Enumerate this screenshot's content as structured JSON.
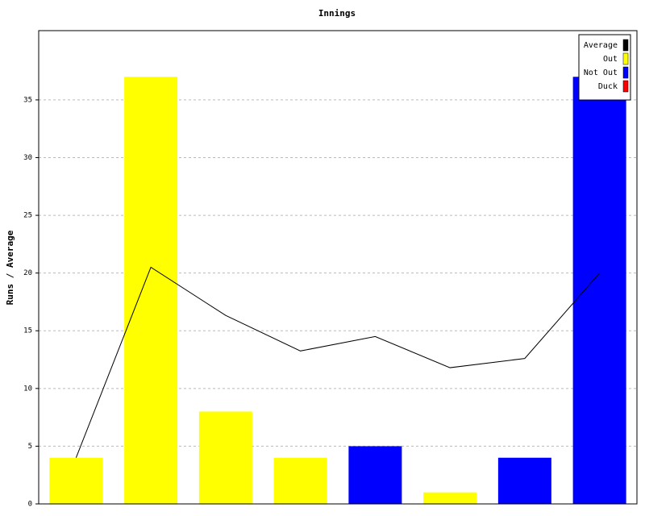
{
  "chart_data": {
    "type": "bar",
    "title": "Innings",
    "y_label": "Runs / Average",
    "categories": [
      null,
      null,
      null,
      null,
      null,
      null,
      null,
      null
    ],
    "series": [
      {
        "name": "Average",
        "type": "line",
        "color": "#000000",
        "values": [
          4,
          20.5,
          16.33,
          13.25,
          14.5,
          11.8,
          12.6,
          20
        ]
      },
      {
        "name": "Out",
        "type": "bar",
        "color": "#ffff00",
        "values": [
          4,
          37,
          8,
          4,
          null,
          1,
          null,
          null
        ]
      },
      {
        "name": "Not Out",
        "type": "bar",
        "color": "#0000ff",
        "values": [
          null,
          null,
          null,
          null,
          5,
          null,
          4,
          37
        ]
      },
      {
        "name": "Duck",
        "type": "bar",
        "color": "#ff0000",
        "values": [
          null,
          null,
          null,
          null,
          null,
          null,
          null,
          null
        ]
      }
    ],
    "ylim": [
      0,
      41
    ],
    "yticks": [
      0,
      5,
      10,
      15,
      20,
      25,
      30,
      35
    ],
    "grid": true,
    "legend": "top-right"
  }
}
